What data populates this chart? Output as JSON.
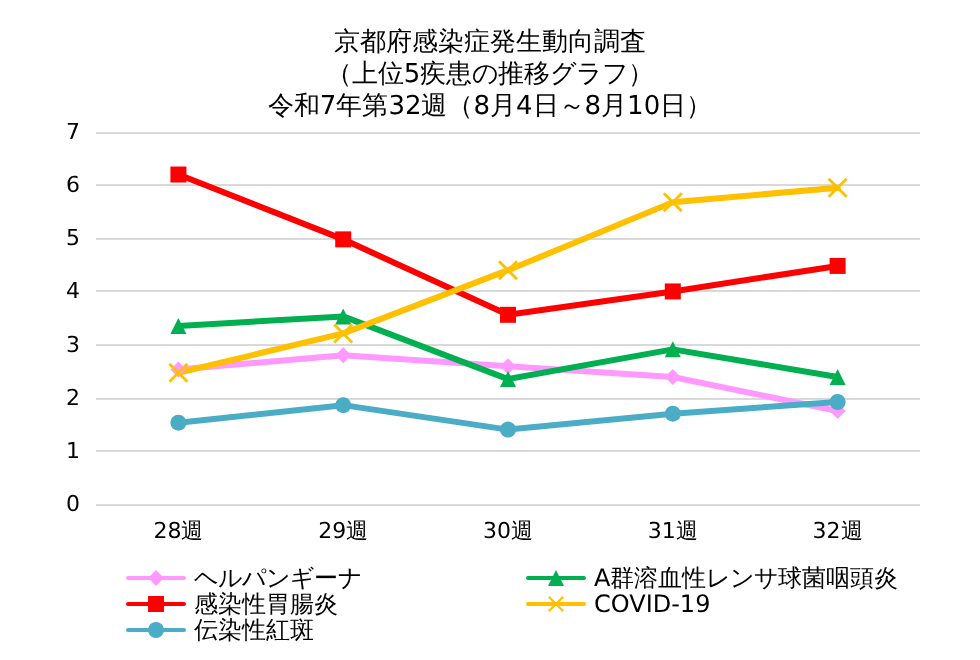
{
  "chart_data": {
    "type": "line",
    "title": "京都府感染症発生動向調査",
    "subtitle": "（上位5疾患の推移グラフ）",
    "annotations": [
      "令和7年第32週（8月4日～8月10日）"
    ],
    "categories": [
      "28週",
      "29週",
      "30週",
      "31週",
      "32週"
    ],
    "ylim": [
      0,
      7
    ],
    "yticks": [
      0,
      1,
      2,
      3,
      4,
      5,
      6,
      7
    ],
    "grid": "y",
    "legend": "bottom",
    "series": [
      {
        "name": "ヘルパンギーナ",
        "color": "#ff99ff",
        "marker": "diamond",
        "values": [
          2.53,
          2.8,
          2.59,
          2.39,
          1.75
        ]
      },
      {
        "name": "A群溶血性レンサ球菌咽頭炎",
        "color": "#00b050",
        "marker": "triangle",
        "values": [
          3.35,
          3.53,
          2.35,
          2.91,
          2.39
        ]
      },
      {
        "name": "感染性胃腸炎",
        "color": "#ff0000",
        "marker": "square",
        "values": [
          6.2,
          4.98,
          3.56,
          4.0,
          4.48
        ]
      },
      {
        "name": "COVID-19",
        "color": "#ffc000",
        "marker": "cross",
        "values": [
          2.47,
          3.21,
          4.4,
          5.68,
          5.95
        ]
      },
      {
        "name": "伝染性紅斑",
        "color": "#4bacc6",
        "marker": "circle",
        "values": [
          1.53,
          1.86,
          1.4,
          1.7,
          1.92
        ]
      }
    ]
  }
}
